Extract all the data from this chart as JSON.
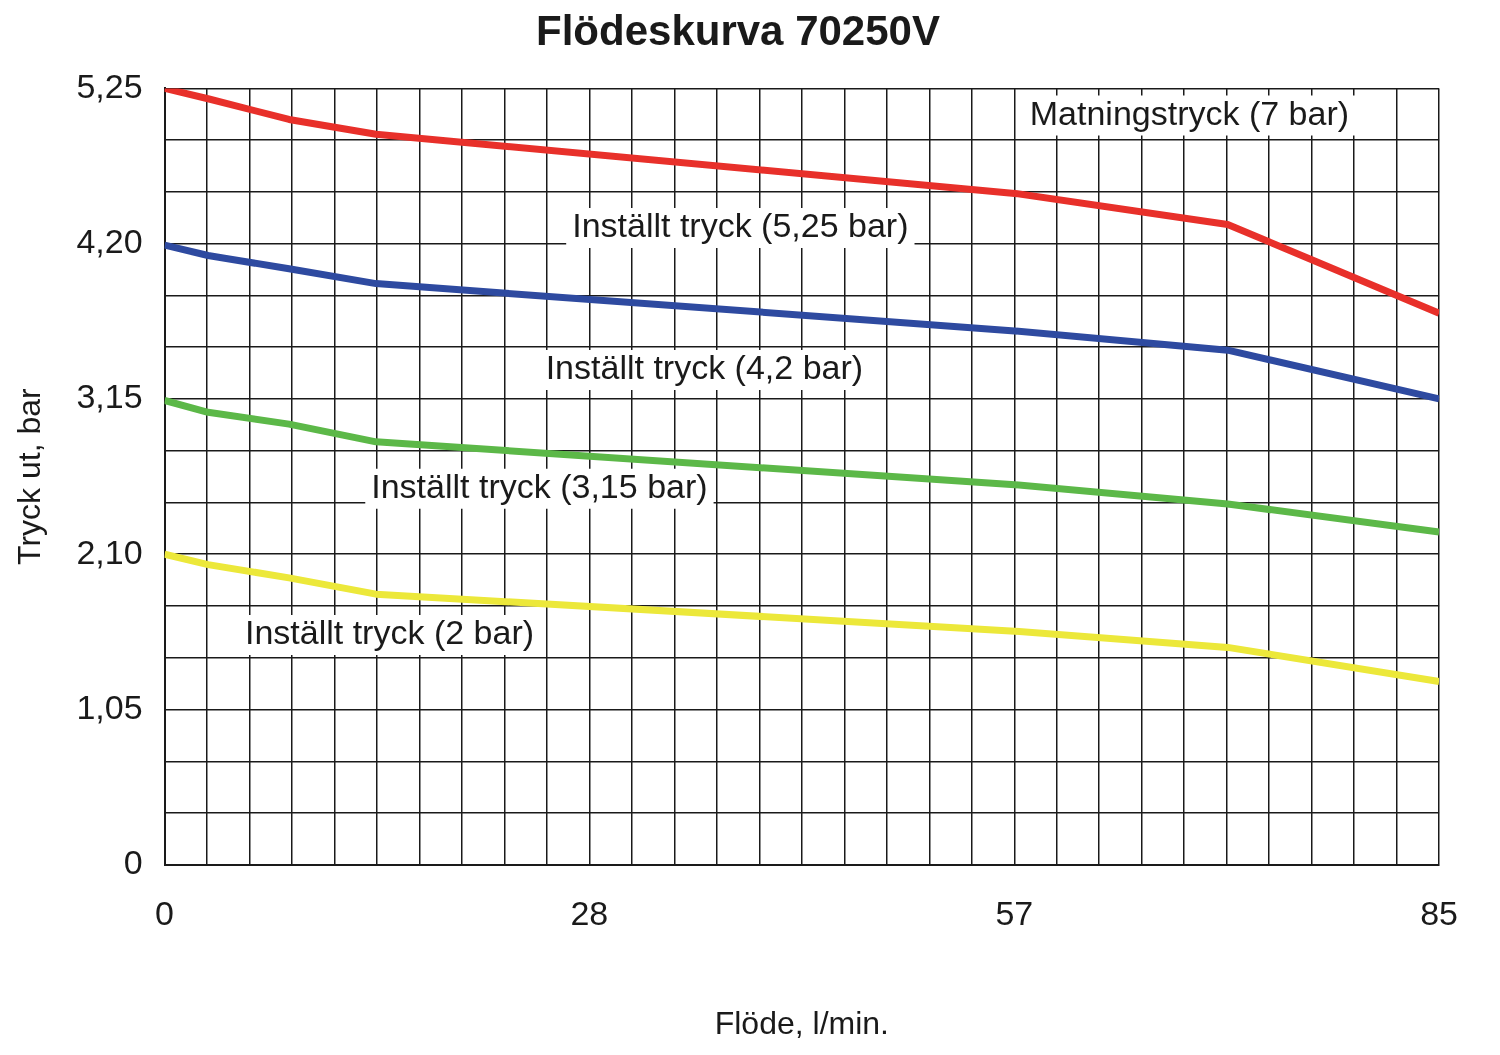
{
  "chart_data": {
    "type": "line",
    "title": "Flödeskurva 70250V",
    "xlabel": "Flöde, l/min.",
    "ylabel": "Tryck ut, bar",
    "xlim": [
      0,
      85
    ],
    "ylim": [
      0,
      5.25
    ],
    "xticks": [
      0,
      {
        "value": 2.83,
        "label": null
      },
      {
        "value": 5.67,
        "label": null
      },
      {
        "value": 8.5,
        "label": null
      },
      {
        "value": 11.33,
        "label": null
      },
      {
        "value": 14.17,
        "label": null
      },
      {
        "value": 17,
        "label": null
      },
      {
        "value": 19.83,
        "label": null
      },
      {
        "value": 22.67,
        "label": null
      },
      {
        "value": 25.5,
        "label": null
      },
      {
        "value": 28.33,
        "label": "28"
      },
      {
        "value": 31.17,
        "label": null
      },
      {
        "value": 34,
        "label": null
      },
      {
        "value": 36.83,
        "label": null
      },
      {
        "value": 39.67,
        "label": null
      },
      {
        "value": 42.5,
        "label": null
      },
      {
        "value": 45.33,
        "label": null
      },
      {
        "value": 48.17,
        "label": null
      },
      {
        "value": 51,
        "label": null
      },
      {
        "value": 53.83,
        "label": null
      },
      {
        "value": 56.67,
        "label": "57"
      },
      {
        "value": 59.5,
        "label": null
      },
      {
        "value": 62.33,
        "label": null
      },
      {
        "value": 65.17,
        "label": null
      },
      {
        "value": 68,
        "label": null
      },
      {
        "value": 70.83,
        "label": null
      },
      {
        "value": 73.67,
        "label": null
      },
      {
        "value": 76.5,
        "label": null
      },
      {
        "value": 79.33,
        "label": null
      },
      {
        "value": 82.17,
        "label": null
      },
      85
    ],
    "yticks": [
      {
        "value": 0,
        "label": "0"
      },
      {
        "value": 0.35,
        "label": null
      },
      {
        "value": 0.7,
        "label": null
      },
      {
        "value": 1.05,
        "label": "1,05"
      },
      {
        "value": 1.4,
        "label": null
      },
      {
        "value": 1.75,
        "label": null
      },
      {
        "value": 2.1,
        "label": "2,10"
      },
      {
        "value": 2.45,
        "label": null
      },
      {
        "value": 2.8,
        "label": null
      },
      {
        "value": 3.15,
        "label": "3,15"
      },
      {
        "value": 3.5,
        "label": null
      },
      {
        "value": 3.85,
        "label": null
      },
      {
        "value": 4.2,
        "label": "4,20"
      },
      {
        "value": 4.55,
        "label": null
      },
      {
        "value": 4.9,
        "label": null
      },
      {
        "value": 5.25,
        "label": "5,25"
      }
    ],
    "x": [
      0,
      2.9,
      8.3,
      14.1,
      56.7,
      70.9,
      85
    ],
    "series": [
      {
        "name": "Inställt tryck (5,25 bar)",
        "color": "#e8302a",
        "values": [
          5.25,
          5.18,
          5.04,
          4.94,
          4.54,
          4.33,
          3.73
        ]
      },
      {
        "name": "Inställt tryck (4,2 bar)",
        "color": "#2e4aa0",
        "values": [
          4.19,
          4.12,
          4.03,
          3.93,
          3.61,
          3.48,
          3.15
        ]
      },
      {
        "name": "Inställt tryck (3,15 bar)",
        "color": "#5cb848",
        "values": [
          3.14,
          3.06,
          2.98,
          2.86,
          2.57,
          2.44,
          2.25
        ]
      },
      {
        "name": "Inställt tryck (2 bar)",
        "color": "#ece83a",
        "values": [
          2.1,
          2.03,
          1.94,
          1.83,
          1.58,
          1.47,
          1.24
        ]
      }
    ],
    "annotations": [
      "Matningstryck (7 bar)"
    ],
    "grid": true,
    "legend": false
  }
}
